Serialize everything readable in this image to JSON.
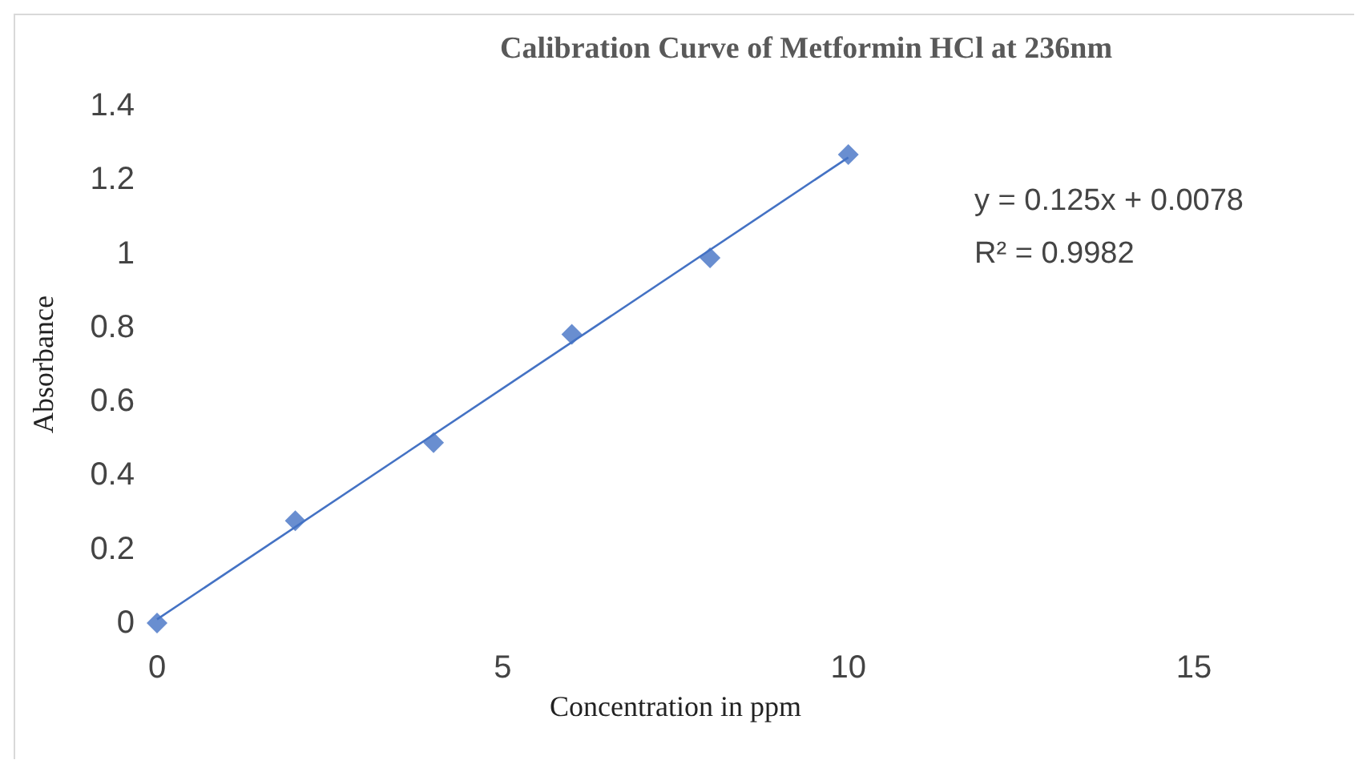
{
  "chart_data": {
    "type": "scatter",
    "title": "Calibration Curve of Metformin HCl at 236nm",
    "xlabel": "Concentration in ppm",
    "ylabel": "Absorbance",
    "annotations": [
      "y = 0.125x + 0.0078",
      "R² = 0.9982"
    ],
    "x": [
      0,
      2,
      4,
      6,
      8,
      10
    ],
    "series": [
      {
        "color": "#4472c4",
        "marker": "diamond",
        "values": [
          0,
          0.277,
          0.488,
          0.781,
          0.988,
          1.268
        ]
      },
      {
        "type": "line",
        "color": "#4472c4",
        "x": [
          0,
          10
        ],
        "values": [
          0.01,
          1.26
        ]
      }
    ],
    "xlim": [
      0,
      15
    ],
    "xticks": [
      0,
      5,
      10,
      15
    ],
    "ylim": [
      0,
      1.4
    ],
    "yticks": [
      0,
      0.2,
      0.4,
      0.6,
      0.8,
      1,
      1.2,
      1.4
    ],
    "grid": false
  }
}
